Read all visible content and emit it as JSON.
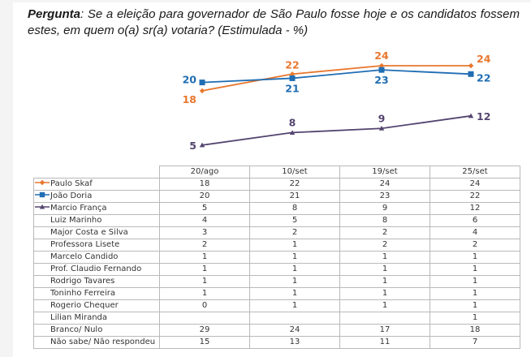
{
  "question": {
    "label": "Pergunta",
    "text": ": Se a eleição para governador de São Paulo fosse hoje e os candidatos fossem estes, em quem o(a) sr(a) votaria? (Estimulada - %)"
  },
  "chart_data": {
    "type": "line",
    "title": "Pergunta: Se a eleição para governador de São Paulo fosse hoje e os candidatos fossem estes, em quem o(a) sr(a) votaria? (Estimulada - %)",
    "xlabel": "",
    "ylabel": "%",
    "categories": [
      "20/ago",
      "10/set",
      "19/set",
      "25/set"
    ],
    "ylim": [
      0,
      30
    ],
    "grid": false,
    "legend": "table-left",
    "series": [
      {
        "name": "Paulo Skaf",
        "color": "#E8772E",
        "marker": "diamond",
        "values": [
          18,
          22,
          24,
          24
        ]
      },
      {
        "name": "João Doria",
        "color": "#1F6DB3",
        "marker": "square",
        "values": [
          20,
          21,
          23,
          22
        ]
      },
      {
        "name": "Marcio França",
        "color": "#54456F",
        "marker": "triangle",
        "values": [
          5,
          8,
          9,
          12
        ]
      }
    ]
  },
  "table": {
    "columns": [
      "20/ago",
      "10/set",
      "19/set",
      "25/set"
    ],
    "rows": [
      {
        "label": "Paulo Skaf",
        "key": "diamond",
        "color": "#E8772E",
        "values": [
          "18",
          "22",
          "24",
          "24"
        ]
      },
      {
        "label": "João Doria",
        "key": "square",
        "color": "#1F6DB3",
        "values": [
          "20",
          "21",
          "23",
          "22"
        ]
      },
      {
        "label": "Marcio França",
        "key": "triangle",
        "color": "#54456F",
        "values": [
          "5",
          "8",
          "9",
          "12"
        ]
      },
      {
        "label": "Luiz Marinho",
        "values": [
          "4",
          "5",
          "8",
          "6"
        ]
      },
      {
        "label": "Major Costa e Silva",
        "values": [
          "3",
          "2",
          "2",
          "4"
        ]
      },
      {
        "label": "Professora Lisete",
        "values": [
          "2",
          "1",
          "2",
          "2"
        ]
      },
      {
        "label": "Marcelo Candido",
        "values": [
          "1",
          "1",
          "1",
          "1"
        ]
      },
      {
        "label": "Prof. Claudio Fernando",
        "values": [
          "1",
          "1",
          "1",
          "1"
        ]
      },
      {
        "label": "Rodrigo Tavares",
        "values": [
          "1",
          "1",
          "1",
          "1"
        ]
      },
      {
        "label": "Toninho Ferreira",
        "values": [
          "1",
          "1",
          "1",
          "1"
        ]
      },
      {
        "label": "Rogerio Chequer",
        "values": [
          "0",
          "1",
          "1",
          "1"
        ]
      },
      {
        "label": "Lilian Miranda",
        "values": [
          "",
          "",
          "",
          "1"
        ]
      },
      {
        "label": "Branco/ Nulo",
        "values": [
          "29",
          "24",
          "17",
          "18"
        ]
      },
      {
        "label": "Não sabe/ Não respondeu",
        "values": [
          "15",
          "13",
          "11",
          "7"
        ]
      }
    ]
  }
}
